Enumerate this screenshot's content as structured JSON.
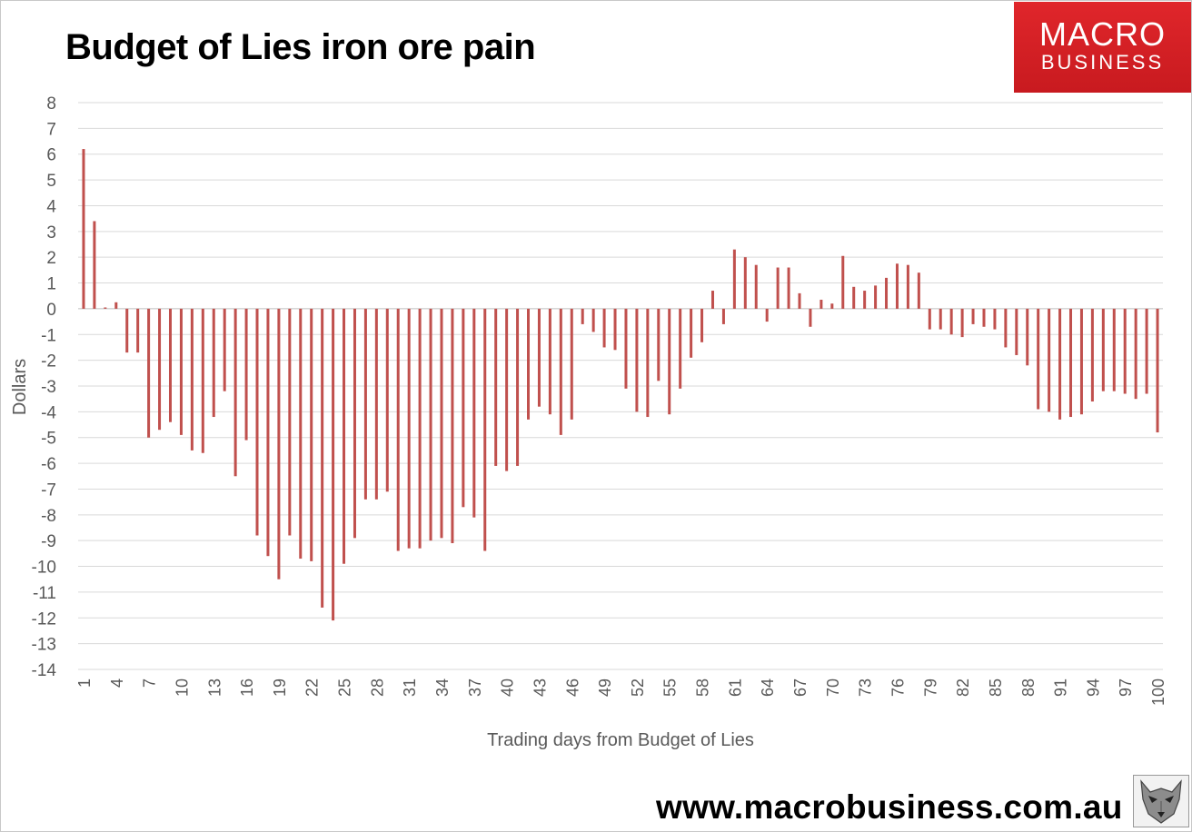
{
  "chart_data": {
    "type": "bar",
    "title": "Budget of Lies iron ore pain",
    "xlabel": "Trading days from Budget of Lies",
    "ylabel": "Dollars",
    "ylim": [
      -14,
      8
    ],
    "ytick_step": 1,
    "grid": true,
    "bar_color": "#c0504d",
    "x": [
      1,
      2,
      3,
      4,
      5,
      6,
      7,
      8,
      9,
      10,
      11,
      12,
      13,
      14,
      15,
      16,
      17,
      18,
      19,
      20,
      21,
      22,
      23,
      24,
      25,
      26,
      27,
      28,
      29,
      30,
      31,
      32,
      33,
      34,
      35,
      36,
      37,
      38,
      39,
      40,
      41,
      42,
      43,
      44,
      45,
      46,
      47,
      48,
      49,
      50,
      51,
      52,
      53,
      54,
      55,
      56,
      57,
      58,
      59,
      60,
      61,
      62,
      63,
      64,
      65,
      66,
      67,
      68,
      69,
      70,
      71,
      72,
      73,
      74,
      75,
      76,
      77,
      78,
      79,
      80,
      81,
      82,
      83,
      84,
      85,
      86,
      87,
      88,
      89,
      90,
      91,
      92,
      93,
      94,
      95,
      96,
      97,
      98,
      99,
      100
    ],
    "x_tick_labels": [
      "1",
      "4",
      "7",
      "10",
      "13",
      "16",
      "19",
      "22",
      "25",
      "28",
      "31",
      "34",
      "37",
      "40",
      "43",
      "46",
      "49",
      "52",
      "55",
      "58",
      "61",
      "64",
      "67",
      "70",
      "73",
      "76",
      "79",
      "82",
      "85",
      "88",
      "91",
      "94",
      "97",
      "100"
    ],
    "values": [
      6.2,
      3.4,
      0.05,
      0.25,
      -1.7,
      -1.7,
      -5.0,
      -4.7,
      -4.4,
      -4.9,
      -5.5,
      -5.6,
      -4.2,
      -3.2,
      -6.5,
      -5.1,
      -8.8,
      -9.6,
      -10.5,
      -8.8,
      -9.7,
      -9.8,
      -11.6,
      -12.1,
      -9.9,
      -8.9,
      -7.4,
      -7.4,
      -7.1,
      -9.4,
      -9.3,
      -9.3,
      -9.0,
      -8.9,
      -9.1,
      -7.7,
      -8.1,
      -9.4,
      -6.1,
      -6.3,
      -6.1,
      -4.3,
      -3.8,
      -4.1,
      -4.9,
      -4.3,
      -0.6,
      -0.9,
      -1.5,
      -1.6,
      -3.1,
      -4.0,
      -4.2,
      -2.8,
      -4.1,
      -3.1,
      -1.9,
      -1.3,
      0.7,
      -0.6,
      2.3,
      2.0,
      1.7,
      -0.5,
      1.6,
      1.6,
      0.6,
      -0.7,
      0.35,
      0.2,
      2.05,
      0.85,
      0.7,
      0.9,
      1.2,
      1.75,
      1.7,
      1.4,
      -0.8,
      -0.8,
      -1.0,
      -1.1,
      -0.6,
      -0.7,
      -0.8,
      -1.5,
      -1.8,
      -2.2,
      -3.9,
      -4.0,
      -4.3,
      -4.2,
      -4.1,
      -3.6,
      -3.2,
      -3.2,
      -3.3,
      -3.5,
      -3.3,
      -4.8
    ]
  },
  "logo": {
    "line1": "MACRO",
    "line2": "BUSINESS"
  },
  "footer": {
    "url": "www.macrobusiness.com.au"
  }
}
